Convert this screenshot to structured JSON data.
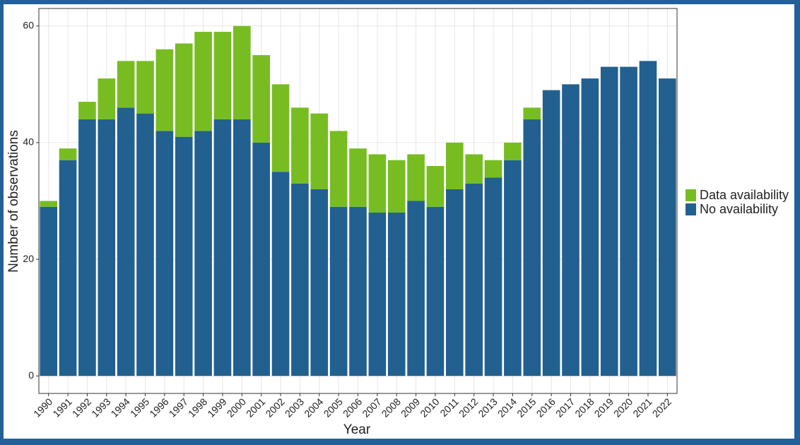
{
  "chart_data": {
    "type": "stacked_bar",
    "x_label": "Year",
    "y_label": "Number of observations",
    "categories": [
      "1990",
      "1991",
      "1992",
      "1993",
      "1994",
      "1995",
      "1996",
      "1997",
      "1998",
      "1999",
      "2000",
      "2001",
      "2002",
      "2003",
      "2004",
      "2005",
      "2006",
      "2007",
      "2008",
      "2009",
      "2010",
      "2011",
      "2012",
      "2013",
      "2014",
      "2015",
      "2016",
      "2017",
      "2018",
      "2019",
      "2020",
      "2021",
      "2022"
    ],
    "series": [
      {
        "name": "Data availability",
        "color": "#77bd22",
        "values": [
          1,
          2,
          3,
          7,
          8,
          9,
          14,
          16,
          17,
          15,
          16,
          15,
          15,
          13,
          13,
          13,
          10,
          10,
          9,
          8,
          7,
          8,
          5,
          3,
          3,
          2,
          0,
          0,
          0,
          0,
          0,
          0,
          0
        ]
      },
      {
        "name": "No availability",
        "color": "#22608f",
        "values": [
          29,
          37,
          44,
          44,
          46,
          45,
          42,
          41,
          42,
          44,
          44,
          40,
          35,
          33,
          32,
          29,
          29,
          28,
          28,
          30,
          29,
          32,
          33,
          34,
          37,
          44,
          49,
          50,
          51,
          53,
          53,
          54,
          51
        ]
      }
    ],
    "ylim": [
      -3,
      63
    ],
    "yticks": [
      0,
      20,
      40,
      60
    ],
    "grid": true,
    "legend": "right"
  }
}
